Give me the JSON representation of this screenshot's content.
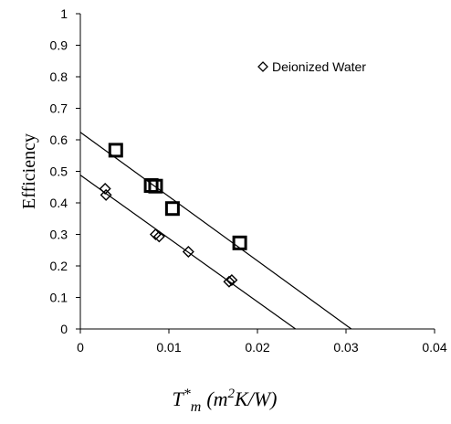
{
  "chart_data": {
    "type": "scatter",
    "title": "",
    "xlabel_parts": {
      "base": "T",
      "superscript_star": "*",
      "subscript": "m",
      "unit_open": "(m",
      "unit_exp": "2",
      "unit_close": "K/W)"
    },
    "ylabel": "Efficiency",
    "xlim": [
      0,
      0.04
    ],
    "ylim": [
      0,
      1
    ],
    "x_ticks": [
      "0",
      "0.01",
      "0.02",
      "0.03",
      "0.04"
    ],
    "y_ticks": [
      "0",
      "0.1",
      "0.2",
      "0.3",
      "0.4",
      "0.5",
      "0.6",
      "0.7",
      "0.8",
      "0.9",
      "1"
    ],
    "x_tick_values": [
      0,
      0.01,
      0.02,
      0.03,
      0.04
    ],
    "y_tick_values": [
      0,
      0.1,
      0.2,
      0.3,
      0.4,
      0.5,
      0.6,
      0.7,
      0.8,
      0.9,
      1
    ],
    "legend_position": "top-right",
    "grid": false,
    "series": [
      {
        "name": "Deionized Water",
        "marker": "diamond",
        "points": [
          {
            "x": 0.0028,
            "y": 0.445
          },
          {
            "x": 0.0029,
            "y": 0.425
          },
          {
            "x": 0.0085,
            "y": 0.3
          },
          {
            "x": 0.0089,
            "y": 0.293
          },
          {
            "x": 0.0122,
            "y": 0.245
          },
          {
            "x": 0.0168,
            "y": 0.15
          },
          {
            "x": 0.0171,
            "y": 0.155
          }
        ],
        "fit_line": {
          "x": [
            0,
            0.0243
          ],
          "y": [
            0.488,
            0
          ]
        }
      },
      {
        "marker": "square",
        "points": [
          {
            "x": 0.004,
            "y": 0.567
          },
          {
            "x": 0.008,
            "y": 0.455
          },
          {
            "x": 0.0085,
            "y": 0.453
          },
          {
            "x": 0.0104,
            "y": 0.382
          },
          {
            "x": 0.018,
            "y": 0.273
          }
        ],
        "fit_line": {
          "x": [
            0,
            0.0306
          ],
          "y": [
            0.624,
            0
          ]
        }
      }
    ]
  }
}
